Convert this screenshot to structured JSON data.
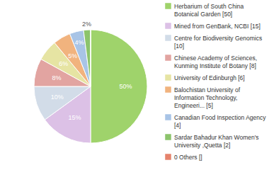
{
  "chart_data": {
    "type": "pie",
    "categories": [
      "Herbarium of South China Botanical Garden [50]",
      "Mined from GenBank, NCBI [15]",
      "Centre for Biodiversity Genomics [10]",
      "Chinese Academy of Sciences, Kunming Institute of Botany [8]",
      "University of Edinburgh [6]",
      "Balochistan University of Information Technology, Engineeri... [5]",
      "Canadian Food Inspection Agency [4]",
      "Sardar Bahadur Khan Women's University ,Quetta [2]",
      "0 Others []"
    ],
    "values": [
      50,
      15,
      10,
      8,
      6,
      5,
      4,
      2,
      0
    ],
    "value_labels": [
      "50%",
      "15%",
      "10%",
      "8%",
      "6%",
      "5%",
      "4%",
      "2%",
      null
    ],
    "colors": [
      "#9fd36b",
      "#dcc1e6",
      "#d2dce8",
      "#e2a4a1",
      "#e6e4a3",
      "#f1b37e",
      "#a8c4e6",
      "#8cc46c",
      "#e5836c"
    ],
    "data_labels": true,
    "legend": "right"
  }
}
